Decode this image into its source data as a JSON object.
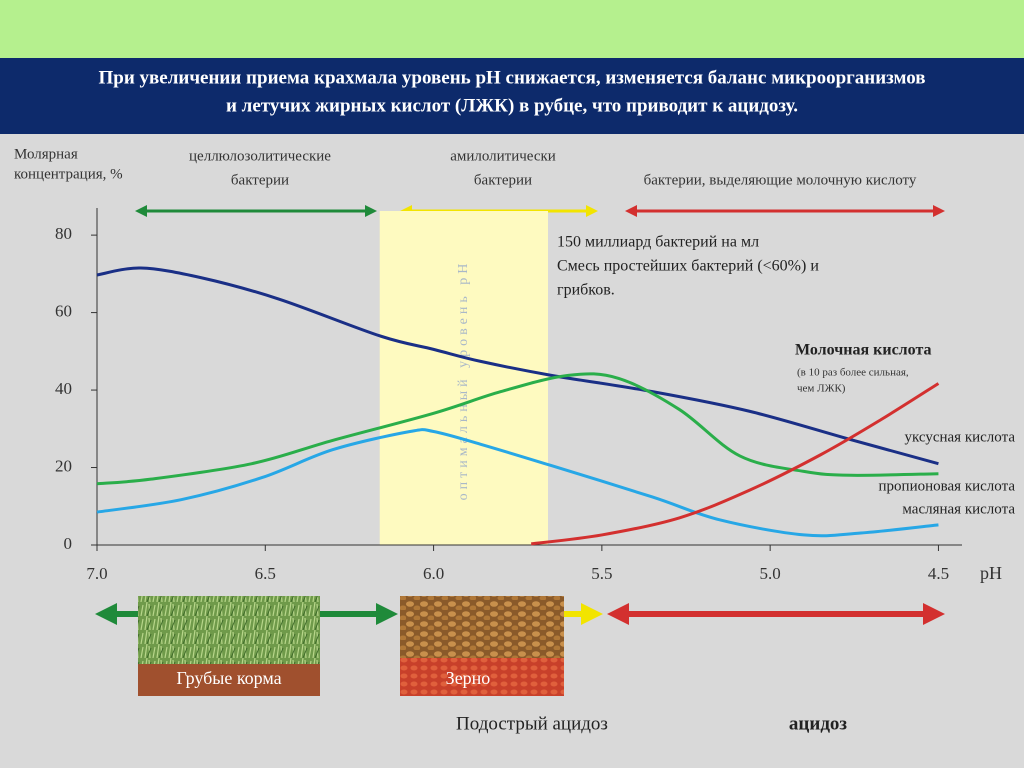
{
  "header": {
    "title": [
      "При увеличении приема крахмала уровень pH снижается, изменяется баланс микроорганизмов",
      "и летучих жирных кислот (ЛЖК) в рубце, что приводит к ацидозу."
    ]
  },
  "chart_data": {
    "type": "line",
    "y_label": [
      "Молярная",
      "концентрация, %"
    ],
    "x_label": "pH",
    "xlim": [
      7.0,
      4.43
    ],
    "ylim": [
      0,
      87
    ],
    "xticks": [
      {
        "value": 7,
        "label": "7.0"
      },
      6.5,
      {
        "value": 6,
        "label": "6.0"
      },
      5.5,
      {
        "value": 5,
        "label": "5.0"
      },
      4.5
    ],
    "yticks": [
      0,
      20,
      40,
      60,
      80
    ],
    "optimal_band": [
      6.16,
      5.66
    ],
    "optimal_label": "оптимальный уровень pH",
    "series": [
      {
        "name": "уксусная кислота",
        "color": "#1a2f86",
        "x": [
          7.0,
          6.87,
          6.69,
          6.46,
          6.16,
          6.0,
          5.86,
          5.65,
          5.35,
          5.06,
          4.76,
          4.5
        ],
        "values": [
          69.7,
          71.5,
          69,
          63.5,
          54,
          50.5,
          47.4,
          43.8,
          39.6,
          34.5,
          27.2,
          21
        ]
      },
      {
        "name": "пропионовая кислота",
        "color": "#2aae4a",
        "x": [
          7.0,
          6.84,
          6.54,
          6.3,
          6.0,
          5.8,
          5.6,
          5.45,
          5.27,
          5.09,
          4.9,
          4.76,
          4.5
        ],
        "values": [
          15.8,
          17,
          21,
          27,
          34,
          39.6,
          43.8,
          43,
          35,
          23,
          19,
          18,
          18.4
        ]
      },
      {
        "name": "масляная кислота",
        "color": "#27a7e6",
        "x": [
          7.0,
          6.75,
          6.51,
          6.3,
          6.07,
          6.0,
          5.86,
          5.65,
          5.35,
          5.15,
          4.9,
          4.73,
          4.5
        ],
        "values": [
          8.5,
          11.7,
          17.4,
          24.6,
          29.3,
          29.3,
          26,
          20.5,
          12.4,
          6.5,
          2.6,
          3.1,
          5.2
        ]
      },
      {
        "name": "Молочная кислота",
        "color": "#d3302f",
        "x": [
          5.71,
          5.5,
          5.27,
          5.06,
          4.85,
          4.67,
          4.5
        ],
        "values": [
          0.3,
          2.6,
          7,
          14.2,
          23.3,
          32.4,
          41.7
        ]
      }
    ],
    "lactic_note": [
      "(в 10 раз более сильная,",
      "чем ЛЖК)"
    ],
    "annotation": [
      "150 миллиард бактерий на мл",
      "Смесь простейших бактерий (<60%) и",
      "грибков."
    ]
  },
  "bacteria": {
    "cellulolytic": [
      "целлюлозолитические",
      "бактерии"
    ],
    "amylolytic": [
      "амилолитически",
      "бактерии"
    ],
    "lactic": "бактерии, выделяющие молочную кислоту"
  },
  "feeds": {
    "roughage": "Грубые корма",
    "grain": "Зерно"
  },
  "acidosis": {
    "subacute": "Подострый ацидоз",
    "acute": "ацидоз"
  }
}
